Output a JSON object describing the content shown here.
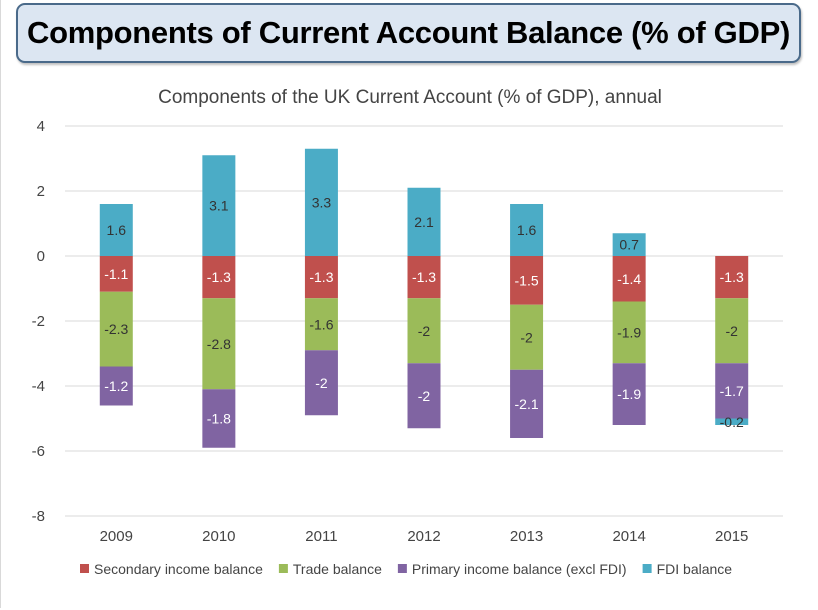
{
  "header": {
    "title": "Components of Current Account Balance (% of GDP)"
  },
  "chart_data": {
    "type": "bar",
    "stacked": true,
    "title": "Components of the UK Current Account (% of GDP), annual",
    "xlabel": "",
    "ylabel": "",
    "ylim": [
      -8,
      4
    ],
    "yticks": [
      4,
      2,
      0,
      -2,
      -4,
      -6,
      -8
    ],
    "grid": true,
    "legend_position": "bottom",
    "categories": [
      "2009",
      "2010",
      "2011",
      "2012",
      "2013",
      "2014",
      "2015"
    ],
    "series": [
      {
        "name": "Secondary income balance",
        "color": "#c0504d",
        "label_color": "#ffffff",
        "values": [
          -1.1,
          -1.3,
          -1.3,
          -1.3,
          -1.5,
          -1.4,
          -1.3
        ]
      },
      {
        "name": "Trade balance",
        "color": "#9bbb59",
        "label_color": "#333333",
        "values": [
          -2.3,
          -2.8,
          -1.6,
          -2,
          -2,
          -1.9,
          -2
        ]
      },
      {
        "name": "Primary income balance (excl FDI)",
        "color": "#8064a2",
        "label_color": "#ffffff",
        "values": [
          -1.2,
          -1.8,
          -2,
          -2,
          -2.1,
          -1.9,
          -1.7
        ]
      },
      {
        "name": "FDI balance",
        "color": "#4bacc6",
        "label_color": "#333333",
        "values": [
          1.6,
          3.1,
          3.3,
          2.1,
          1.6,
          0.7,
          -0.2
        ]
      }
    ]
  }
}
